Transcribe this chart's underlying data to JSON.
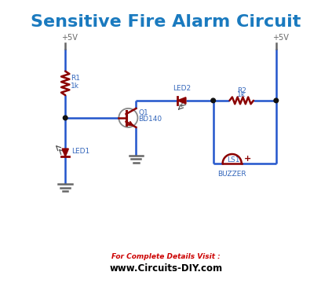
{
  "title": "Sensitive Fire Alarm Circuit",
  "title_color": "#1a7abf",
  "title_fontsize": 16,
  "title_fontweight": "bold",
  "bg_color": "#ffffff",
  "wire_color": "#2255cc",
  "wire_lw": 1.8,
  "component_color": "#8B0000",
  "component_lw": 1.8,
  "dot_color": "#000000",
  "label_color": "#3366bb",
  "label_fontsize": 6.5,
  "footer_text1": "For Complete Details Visit :",
  "footer_text2": "www.Circuits-DIY.com",
  "footer_color1": "#cc0000",
  "footer_color2": "#000000",
  "footer_fontsize1": 6.5,
  "footer_fontsize2": 8.5,
  "ground_color": "#666666",
  "vcc_color": "#666666"
}
